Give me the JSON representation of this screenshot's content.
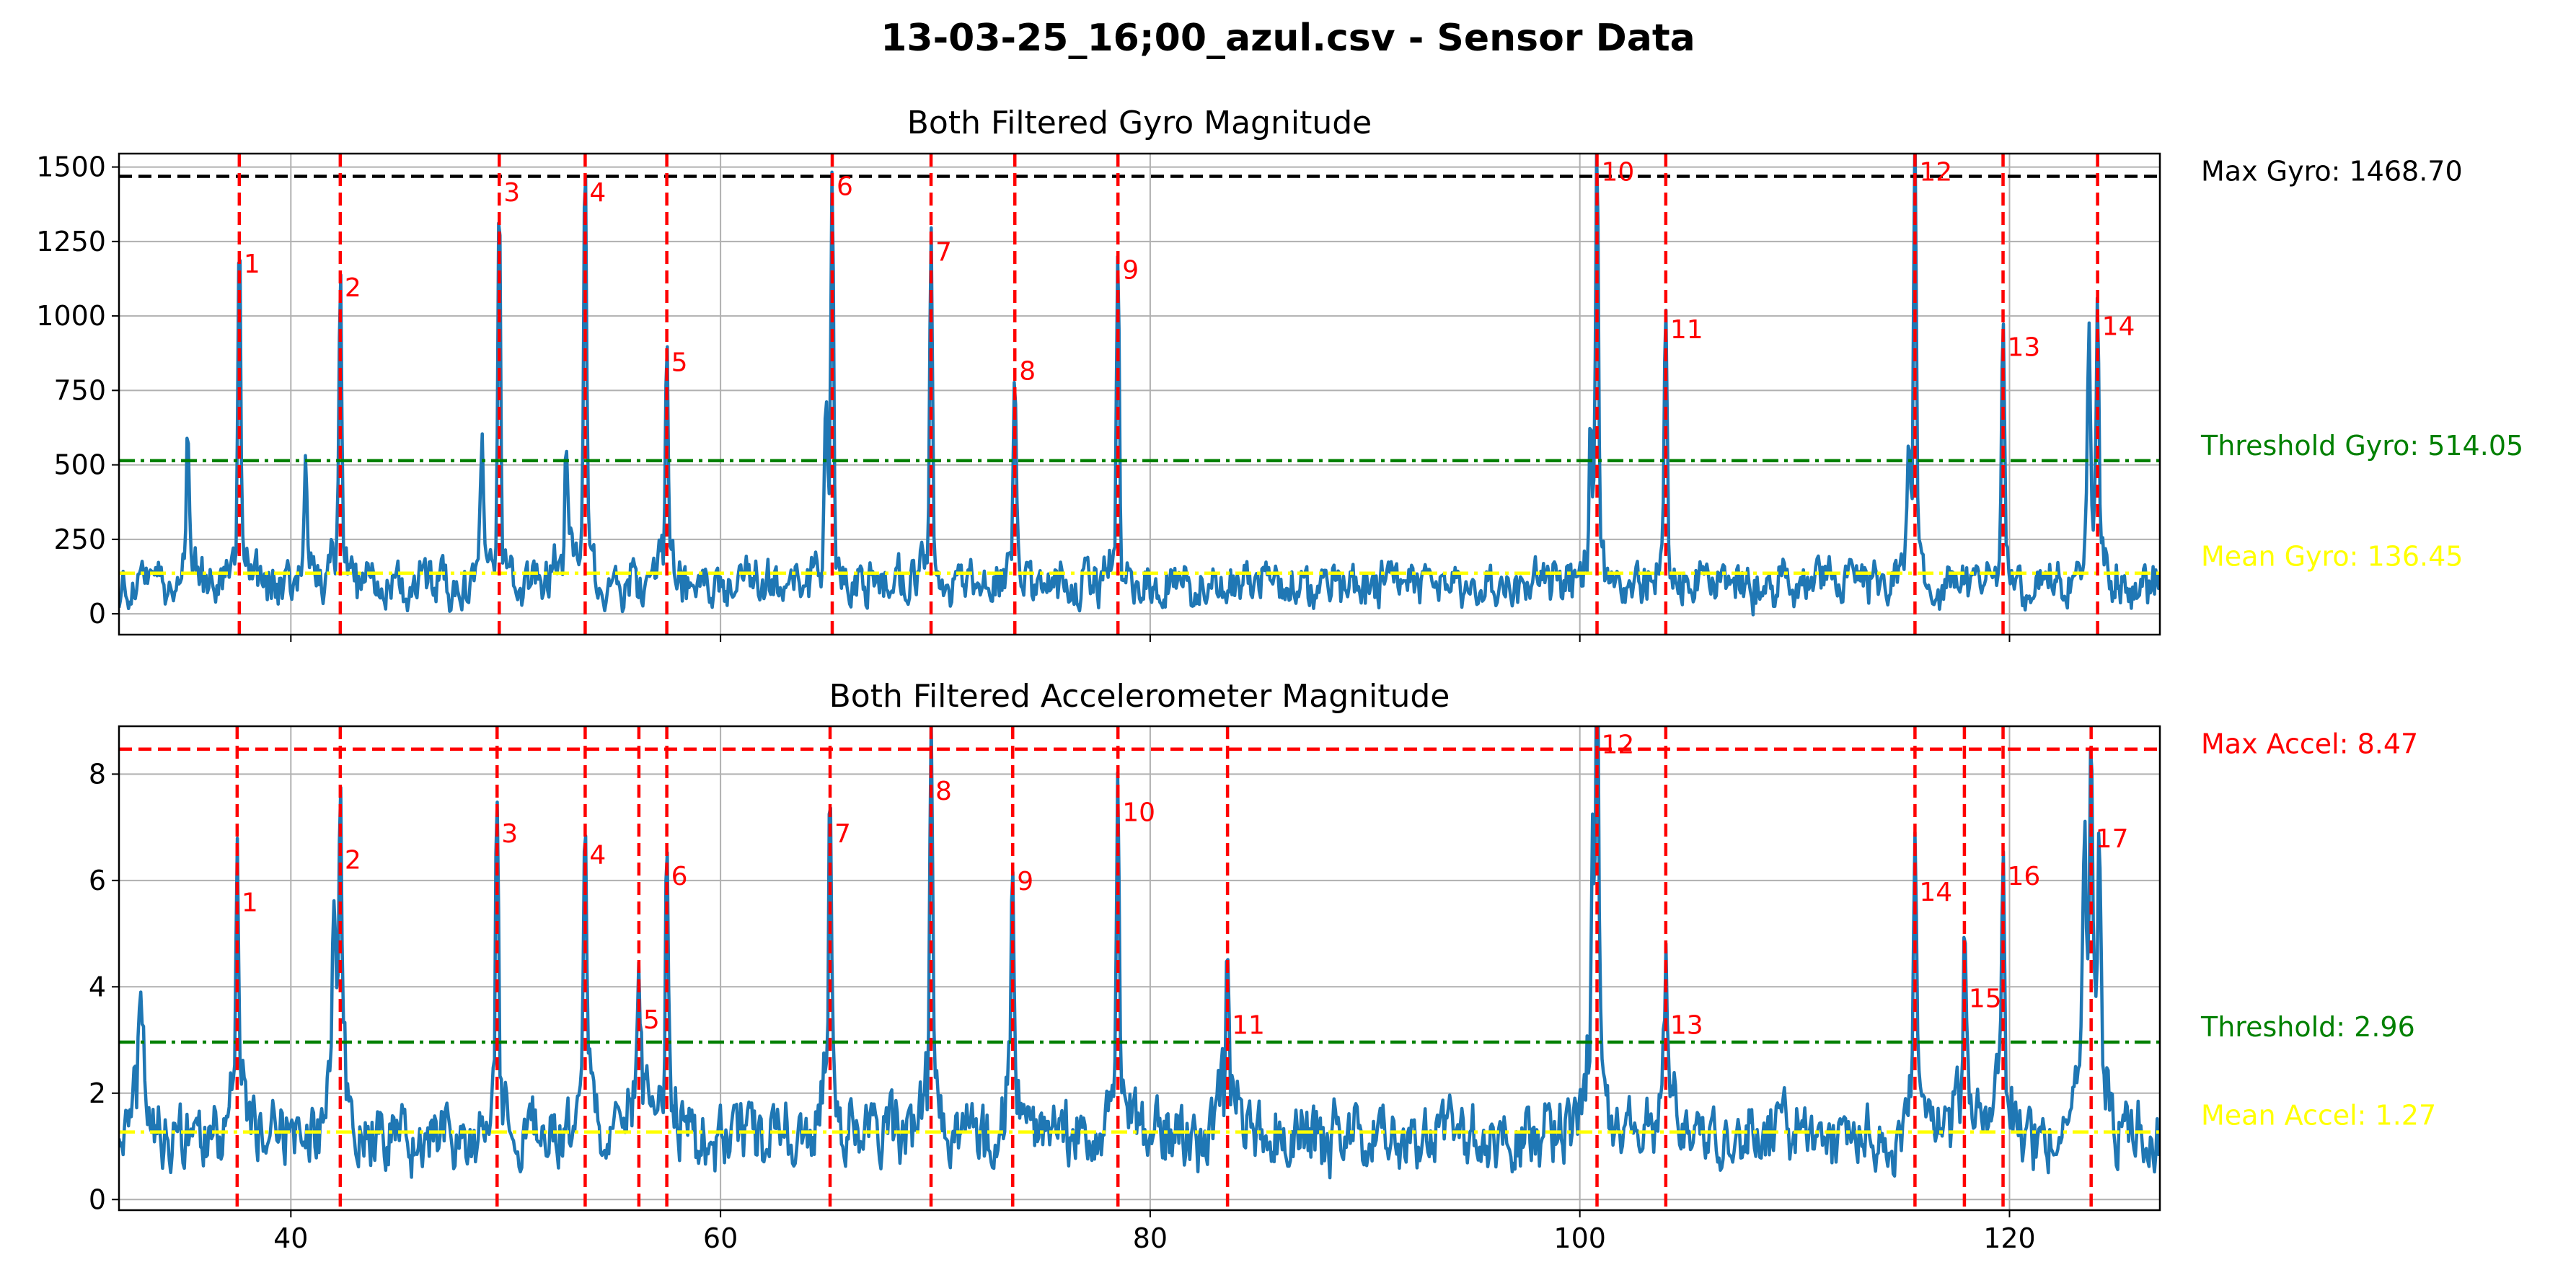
{
  "figure": {
    "suptitle": "13-03-25_16;00_azul.csv - Sensor Data"
  },
  "chart_data": [
    {
      "type": "line",
      "title": "Both Filtered  Gyro Magnitude",
      "xlabel": "",
      "ylabel": "",
      "xlim": [
        32,
        127
      ],
      "ylim": [
        -70,
        1545
      ],
      "yticks": [
        0,
        250,
        500,
        750,
        1000,
        1250,
        1500
      ],
      "xticks": [
        40,
        60,
        80,
        100,
        120
      ],
      "xtick_labels_visible": false,
      "grid": true,
      "baseline": 100,
      "noise_amplitude": 70,
      "color_line": "#1f77b4",
      "color_peak_marker": "#ff0000",
      "peaks": [
        {
          "label": "1",
          "x": 37.6,
          "y": 1160
        },
        {
          "label": "2",
          "x": 42.3,
          "y": 1080
        },
        {
          "label": "3",
          "x": 49.7,
          "y": 1400
        },
        {
          "label": "4",
          "x": 53.7,
          "y": 1400
        },
        {
          "label": "5",
          "x": 57.5,
          "y": 830
        },
        {
          "label": "6",
          "x": 65.2,
          "y": 1420
        },
        {
          "label": "7",
          "x": 69.8,
          "y": 1200
        },
        {
          "label": "8",
          "x": 73.7,
          "y": 800
        },
        {
          "label": "9",
          "x": 78.5,
          "y": 1140
        },
        {
          "label": "10",
          "x": 100.8,
          "y": 1468.7
        },
        {
          "label": "11",
          "x": 104.0,
          "y": 940
        },
        {
          "label": "12",
          "x": 115.6,
          "y": 1468.7
        },
        {
          "label": "13",
          "x": 119.7,
          "y": 880
        },
        {
          "label": "14",
          "x": 124.1,
          "y": 950
        }
      ],
      "secondary_bumps": [
        {
          "x": 35.2,
          "y": 500
        },
        {
          "x": 40.7,
          "y": 400
        },
        {
          "x": 48.9,
          "y": 480
        },
        {
          "x": 52.8,
          "y": 450
        },
        {
          "x": 64.9,
          "y": 550
        },
        {
          "x": 100.5,
          "y": 540
        },
        {
          "x": 115.3,
          "y": 510
        },
        {
          "x": 123.7,
          "y": 870
        }
      ],
      "reference_lines": [
        {
          "name": "max",
          "value": 1468.7,
          "color": "#000000",
          "style": "dashed",
          "label": "Max Gyro: 1468.70"
        },
        {
          "name": "threshold",
          "value": 514.05,
          "color": "#008000",
          "style": "dashdot",
          "label": "Threshold Gyro: 514.05"
        },
        {
          "name": "mean",
          "value": 136.45,
          "color": "#ffff00",
          "style": "dashdot",
          "label": "Mean Gyro: 136.45"
        }
      ]
    },
    {
      "type": "line",
      "title": "Both Filtered  Accelerometer Magnitude",
      "xlabel": "",
      "ylabel": "",
      "xlim": [
        32,
        127
      ],
      "ylim": [
        -0.2,
        8.9
      ],
      "yticks": [
        0,
        2,
        4,
        6,
        8
      ],
      "xticks": [
        40,
        60,
        80,
        100,
        120
      ],
      "xtick_labels_visible": true,
      "grid": true,
      "baseline": 1.2,
      "noise_amplitude": 0.55,
      "color_line": "#1f77b4",
      "color_peak_marker": "#ff0000",
      "peaks": [
        {
          "label": "1",
          "x": 37.5,
          "y": 5.5
        },
        {
          "label": "2",
          "x": 42.3,
          "y": 6.3
        },
        {
          "label": "3",
          "x": 49.6,
          "y": 6.8
        },
        {
          "label": "4",
          "x": 53.7,
          "y": 6.4
        },
        {
          "label": "5",
          "x": 56.2,
          "y": 3.3
        },
        {
          "label": "6",
          "x": 57.5,
          "y": 6.0
        },
        {
          "label": "7",
          "x": 65.1,
          "y": 6.8
        },
        {
          "label": "8",
          "x": 69.8,
          "y": 7.6
        },
        {
          "label": "9",
          "x": 73.6,
          "y": 5.9
        },
        {
          "label": "10",
          "x": 78.5,
          "y": 7.2
        },
        {
          "label": "11",
          "x": 83.6,
          "y": 3.2
        },
        {
          "label": "12",
          "x": 100.8,
          "y": 8.47
        },
        {
          "label": "13",
          "x": 104.0,
          "y": 3.2
        },
        {
          "label": "14",
          "x": 115.6,
          "y": 5.7
        },
        {
          "label": "15",
          "x": 117.9,
          "y": 3.7
        },
        {
          "label": "16",
          "x": 119.7,
          "y": 6.0
        },
        {
          "label": "17",
          "x": 123.8,
          "y": 6.7
        }
      ],
      "secondary_bumps": [
        {
          "x": 33.0,
          "y": 2.6
        },
        {
          "x": 42.0,
          "y": 4.2
        },
        {
          "x": 100.6,
          "y": 4.7
        },
        {
          "x": 124.2,
          "y": 4.9
        },
        {
          "x": 123.5,
          "y": 4.6
        }
      ],
      "reference_lines": [
        {
          "name": "max",
          "value": 8.47,
          "color": "#ff0000",
          "style": "dashed",
          "label": "Max Accel: 8.47"
        },
        {
          "name": "threshold",
          "value": 2.96,
          "color": "#008000",
          "style": "dashdot",
          "label": "Threshold: 2.96"
        },
        {
          "name": "mean",
          "value": 1.27,
          "color": "#ffff00",
          "style": "dashdot",
          "label": "Mean Accel: 1.27"
        }
      ]
    }
  ]
}
